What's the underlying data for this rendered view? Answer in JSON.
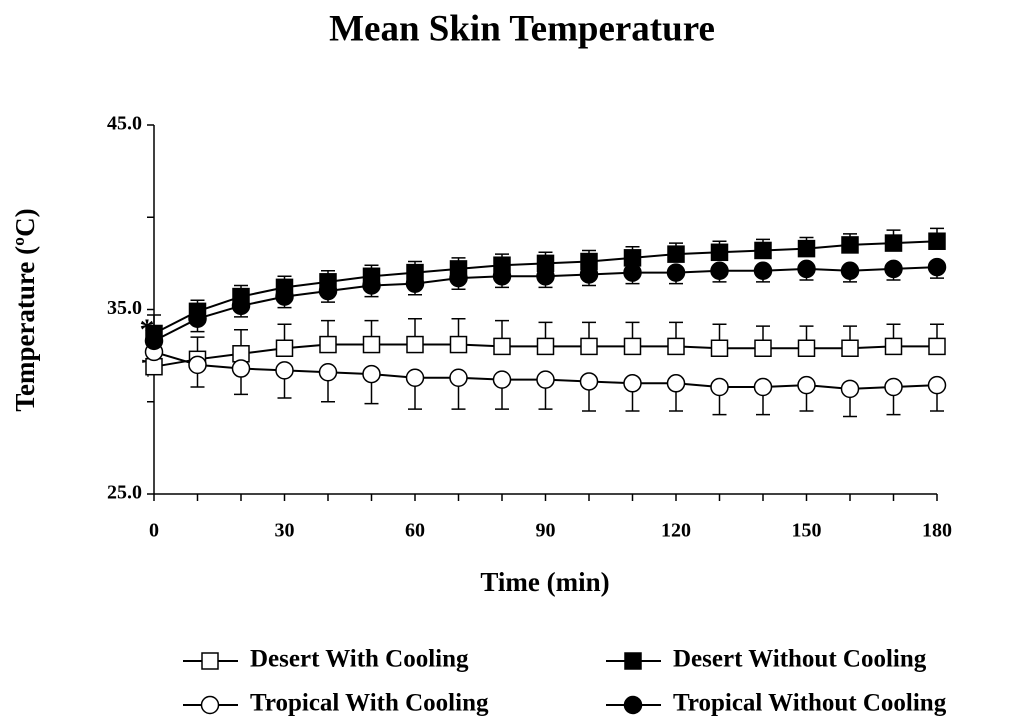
{
  "chart_data": {
    "type": "line",
    "title": "Mean Skin Temperature",
    "x_label": "Time (min)",
    "y_label": "Temperature (ºC)",
    "annotations": [
      "*",
      "†"
    ],
    "x": [
      0,
      10,
      20,
      30,
      40,
      50,
      60,
      70,
      80,
      90,
      100,
      110,
      120,
      130,
      140,
      150,
      160,
      170,
      180
    ],
    "xlim": [
      0,
      180
    ],
    "xticks": [
      0,
      30,
      60,
      90,
      120,
      150,
      180
    ],
    "xminorticks": [
      10,
      20,
      40,
      50,
      70,
      80,
      100,
      110,
      130,
      140,
      160,
      170
    ],
    "ylim": [
      25,
      45
    ],
    "yticks": [
      {
        "value": 25,
        "label": "25.0"
      },
      {
        "value": 35,
        "label": "35.0"
      },
      {
        "value": 45,
        "label": "45.0"
      }
    ],
    "yminorticks": [
      30,
      40
    ],
    "series": [
      {
        "name": "Desert With Cooling",
        "color": "#000000",
        "marker": "square",
        "marker_fill": "#ffffff",
        "error_direction": "up",
        "values": [
          31.9,
          32.3,
          32.6,
          32.9,
          33.1,
          33.1,
          33.1,
          33.1,
          33.0,
          33.0,
          33.0,
          33.0,
          33.0,
          32.9,
          32.9,
          32.9,
          32.9,
          33.0,
          33.0
        ],
        "errors": [
          1.0,
          1.2,
          1.3,
          1.3,
          1.3,
          1.3,
          1.4,
          1.4,
          1.4,
          1.3,
          1.3,
          1.3,
          1.3,
          1.3,
          1.2,
          1.2,
          1.2,
          1.2,
          1.2
        ]
      },
      {
        "name": "Desert Without Cooling",
        "color": "#000000",
        "marker": "square",
        "marker_fill": "#000000",
        "error_direction": "up",
        "values": [
          33.7,
          34.9,
          35.7,
          36.2,
          36.5,
          36.8,
          37.0,
          37.2,
          37.4,
          37.5,
          37.6,
          37.8,
          38.0,
          38.1,
          38.2,
          38.3,
          38.5,
          38.6,
          38.7
        ],
        "errors": [
          1.0,
          0.6,
          0.6,
          0.6,
          0.6,
          0.6,
          0.6,
          0.6,
          0.6,
          0.6,
          0.6,
          0.6,
          0.6,
          0.6,
          0.6,
          0.6,
          0.6,
          0.7,
          0.7
        ]
      },
      {
        "name": "Tropical With Cooling",
        "color": "#000000",
        "marker": "circle",
        "marker_fill": "#ffffff",
        "error_direction": "down",
        "values": [
          32.7,
          32.0,
          31.8,
          31.7,
          31.6,
          31.5,
          31.3,
          31.3,
          31.2,
          31.2,
          31.1,
          31.0,
          31.0,
          30.8,
          30.8,
          30.9,
          30.7,
          30.8,
          30.9
        ],
        "errors": [
          1.0,
          1.2,
          1.4,
          1.5,
          1.6,
          1.6,
          1.7,
          1.7,
          1.6,
          1.6,
          1.6,
          1.5,
          1.5,
          1.5,
          1.5,
          1.4,
          1.5,
          1.5,
          1.4
        ]
      },
      {
        "name": "Tropical Without Cooling",
        "color": "#000000",
        "marker": "circle",
        "marker_fill": "#000000",
        "error_direction": "down",
        "values": [
          33.3,
          34.5,
          35.2,
          35.7,
          36.0,
          36.3,
          36.4,
          36.7,
          36.8,
          36.8,
          36.9,
          37.0,
          37.0,
          37.1,
          37.1,
          37.2,
          37.1,
          37.2,
          37.3
        ],
        "errors": [
          1.0,
          0.7,
          0.6,
          0.6,
          0.6,
          0.6,
          0.6,
          0.6,
          0.6,
          0.6,
          0.6,
          0.6,
          0.6,
          0.6,
          0.6,
          0.6,
          0.6,
          0.6,
          0.6
        ]
      }
    ]
  }
}
